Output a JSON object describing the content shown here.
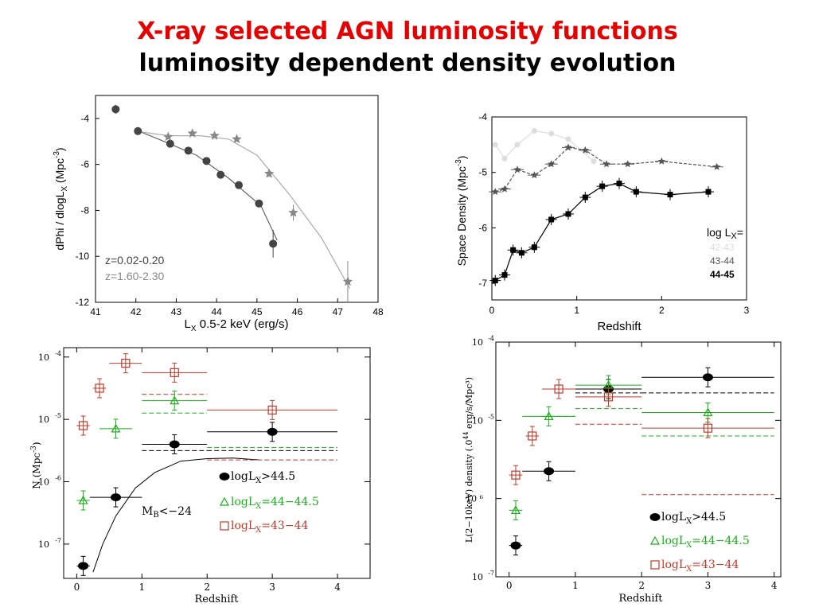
{
  "slide": {
    "title": "X-ray selected AGN luminosity functions",
    "subtitle": "luminosity dependent density evolution"
  },
  "chart_data": [
    {
      "type": "scatter",
      "id": "lf",
      "xlabel": "L",
      "xlabel_sub": "X",
      "xlabel_rest": " 0.5-2 keV (erg/s)",
      "ylabel": "dPhi / dlogL",
      "ylabel_sub": "X",
      "ylabel_rest": " (Mpc",
      "ylabel_sup": "-3",
      "ylabel_end": ")",
      "xlim": [
        41,
        48
      ],
      "ylim": [
        -12,
        -3
      ],
      "xticks": [
        "41",
        "42",
        "43",
        "44",
        "45",
        "46",
        "47",
        "48"
      ],
      "yticks": [
        "-12",
        "-10",
        "-8",
        "-6",
        "-4"
      ],
      "legend_position": "bottom-left",
      "colors": {
        "low_z": "#444444",
        "high_z": "#888888"
      },
      "series": [
        {
          "name": "z=0.02-0.20",
          "marker": "circle",
          "points": [
            [
              41.5,
              -3.6
            ],
            [
              42.05,
              -4.55
            ],
            [
              42.85,
              -5.1
            ],
            [
              43.3,
              -5.4
            ],
            [
              43.75,
              -5.85
            ],
            [
              44.1,
              -6.45
            ],
            [
              44.55,
              -6.9
            ],
            [
              45.05,
              -7.7
            ],
            [
              45.4,
              -9.45
            ]
          ],
          "errors": [
            0.2,
            0.1,
            0.1,
            0.1,
            0.1,
            0.1,
            0.1,
            0.15,
            0.6
          ]
        },
        {
          "name": "z=1.60-2.30",
          "marker": "star",
          "points": [
            [
              42.8,
              -4.8
            ],
            [
              43.4,
              -4.65
            ],
            [
              43.95,
              -4.75
            ],
            [
              44.5,
              -4.9
            ],
            [
              45.3,
              -6.4
            ],
            [
              45.9,
              -8.1
            ],
            [
              47.25,
              -11.1
            ]
          ],
          "errors": [
            0.1,
            0.1,
            0.1,
            0.1,
            0.15,
            0.35,
            0.9
          ]
        }
      ],
      "fits": [
        {
          "series": "z=0.02-0.20",
          "points": [
            [
              42,
              -4.5
            ],
            [
              42.7,
              -5.0
            ],
            [
              43.5,
              -5.6
            ],
            [
              44.3,
              -6.6
            ],
            [
              45.1,
              -7.8
            ],
            [
              45.5,
              -9.3
            ]
          ]
        },
        {
          "series": "z=1.60-2.30",
          "points": [
            [
              42,
              -4.55
            ],
            [
              42.8,
              -4.75
            ],
            [
              43.6,
              -4.75
            ],
            [
              44.3,
              -4.9
            ],
            [
              45.0,
              -5.6
            ],
            [
              45.8,
              -7.3
            ],
            [
              46.6,
              -9.2
            ],
            [
              47.3,
              -11.4
            ]
          ]
        }
      ]
    },
    {
      "type": "line",
      "id": "space-density",
      "xlabel": "Redshift",
      "ylabel": "Space Density (Mpc",
      "ylabel_sup": "-3",
      "ylabel_end": ")",
      "xlim": [
        0,
        3
      ],
      "ylim": [
        -7.3,
        -4
      ],
      "xticks": [
        "0",
        "1",
        "2",
        "3"
      ],
      "yticks": [
        "-7",
        "-6",
        "-5",
        "-4"
      ],
      "legend_title": "log L",
      "legend_title_sub": "X",
      "legend_title_end": "=",
      "legend_position": "right",
      "series": [
        {
          "name": "42-43",
          "color": "#dddddd",
          "marker": "circle",
          "points": [
            [
              0.04,
              -4.5
            ],
            [
              0.15,
              -4.75
            ],
            [
              0.3,
              -4.5
            ],
            [
              0.5,
              -4.25
            ],
            [
              0.7,
              -4.3
            ],
            [
              0.9,
              -4.4
            ],
            [
              1.2,
              -4.8
            ]
          ]
        },
        {
          "name": "43-44",
          "color": "#555555",
          "marker": "star",
          "points": [
            [
              0.04,
              -5.35
            ],
            [
              0.15,
              -5.3
            ],
            [
              0.3,
              -4.95
            ],
            [
              0.5,
              -5.05
            ],
            [
              0.7,
              -4.85
            ],
            [
              0.9,
              -4.55
            ],
            [
              1.1,
              -4.6
            ],
            [
              1.35,
              -4.85
            ],
            [
              1.6,
              -4.85
            ],
            [
              2.0,
              -4.8
            ],
            [
              2.65,
              -4.9
            ]
          ]
        },
        {
          "name": "44-45",
          "color": "#000000",
          "marker": "square",
          "points": [
            [
              0.04,
              -6.95
            ],
            [
              0.15,
              -6.85
            ],
            [
              0.25,
              -6.4
            ],
            [
              0.35,
              -6.45
            ],
            [
              0.5,
              -6.35
            ],
            [
              0.7,
              -5.85
            ],
            [
              0.9,
              -5.75
            ],
            [
              1.1,
              -5.45
            ],
            [
              1.3,
              -5.25
            ],
            [
              1.5,
              -5.2
            ],
            [
              1.7,
              -5.35
            ],
            [
              2.1,
              -5.4
            ],
            [
              2.55,
              -5.35
            ]
          ]
        }
      ]
    },
    {
      "type": "scatter",
      "id": "number-density",
      "xlabel": "Redshift",
      "ylabel": "N (Mpc",
      "ylabel_sup": "-3",
      "ylabel_end": ")",
      "log_y": true,
      "xlim": [
        -0.2,
        4.5
      ],
      "ylim_exp": [
        -7.55,
        -3.85
      ],
      "xticks": [
        "0",
        "1",
        "2",
        "3",
        "4"
      ],
      "yticks_base": "10",
      "yticks_exp": [
        "-7",
        "-6",
        "-5",
        "-4"
      ],
      "curve_label": "M",
      "curve_label_sub": "B",
      "curve_label_end": "<−24",
      "legend_position": "lower-right",
      "series": [
        {
          "name": "logL",
          "name_sub": "X",
          "name_end": ">44.5",
          "color": "#000000",
          "marker": "dot",
          "points": [
            [
              0.1,
              -7.35
            ],
            [
              0.6,
              -6.25
            ],
            [
              1.5,
              -5.4
            ],
            [
              3.0,
              -5.2
            ]
          ]
        },
        {
          "name": "logL",
          "name_sub": "X",
          "name_end": "=44−44.5",
          "color": "#1ab01a",
          "marker": "triangle",
          "points": [
            [
              0.1,
              -6.3
            ],
            [
              0.6,
              -5.15
            ],
            [
              1.5,
              -4.7
            ]
          ]
        },
        {
          "name": "logL",
          "name_sub": "X",
          "name_end": "=43−44",
          "color": "#c0392b",
          "marker": "square",
          "points": [
            [
              0.1,
              -5.1
            ],
            [
              0.35,
              -4.5
            ],
            [
              0.75,
              -4.1
            ],
            [
              1.5,
              -4.25
            ],
            [
              3.0,
              -4.85
            ]
          ]
        }
      ]
    },
    {
      "type": "scatter",
      "id": "luminosity-density",
      "xlabel": "Redshift",
      "ylabel": "L(2−10keV) density (.0",
      "ylabel_sup": "44",
      "ylabel_end": " erg/s/Mpc³)",
      "log_y": true,
      "xlim": [
        -0.2,
        4.1
      ],
      "ylim_exp": [
        -7,
        -4
      ],
      "xticks": [
        "0",
        "1",
        "2",
        "3",
        "4"
      ],
      "yticks_base": "10",
      "yticks_exp": [
        "-7",
        "-6",
        "-5",
        "-4"
      ],
      "ytick_labels": [
        "10",
        "10 ⁶",
        "10",
        "10"
      ],
      "legend_position": "lower-right",
      "series": [
        {
          "name": "logL",
          "name_sub": "X",
          "name_end": ">44.5",
          "color": "#000000",
          "marker": "dot",
          "points": [
            [
              0.1,
              -6.6
            ],
            [
              0.6,
              -5.65
            ],
            [
              1.5,
              -4.6
            ],
            [
              3.0,
              -4.45
            ]
          ]
        },
        {
          "name": "logL",
          "name_sub": "X",
          "name_end": "=44−44.5",
          "color": "#1ab01a",
          "marker": "triangle",
          "points": [
            [
              0.1,
              -6.15
            ],
            [
              0.6,
              -4.95
            ],
            [
              1.5,
              -4.55
            ],
            [
              3.0,
              -4.9
            ]
          ]
        },
        {
          "name": "logL",
          "name_sub": "X",
          "name_end": "=43−44",
          "color": "#c0392b",
          "marker": "square",
          "points": [
            [
              0.1,
              -5.7
            ],
            [
              0.35,
              -5.2
            ],
            [
              0.75,
              -4.6
            ],
            [
              1.5,
              -4.7
            ],
            [
              3.0,
              -5.1
            ]
          ]
        }
      ]
    }
  ]
}
